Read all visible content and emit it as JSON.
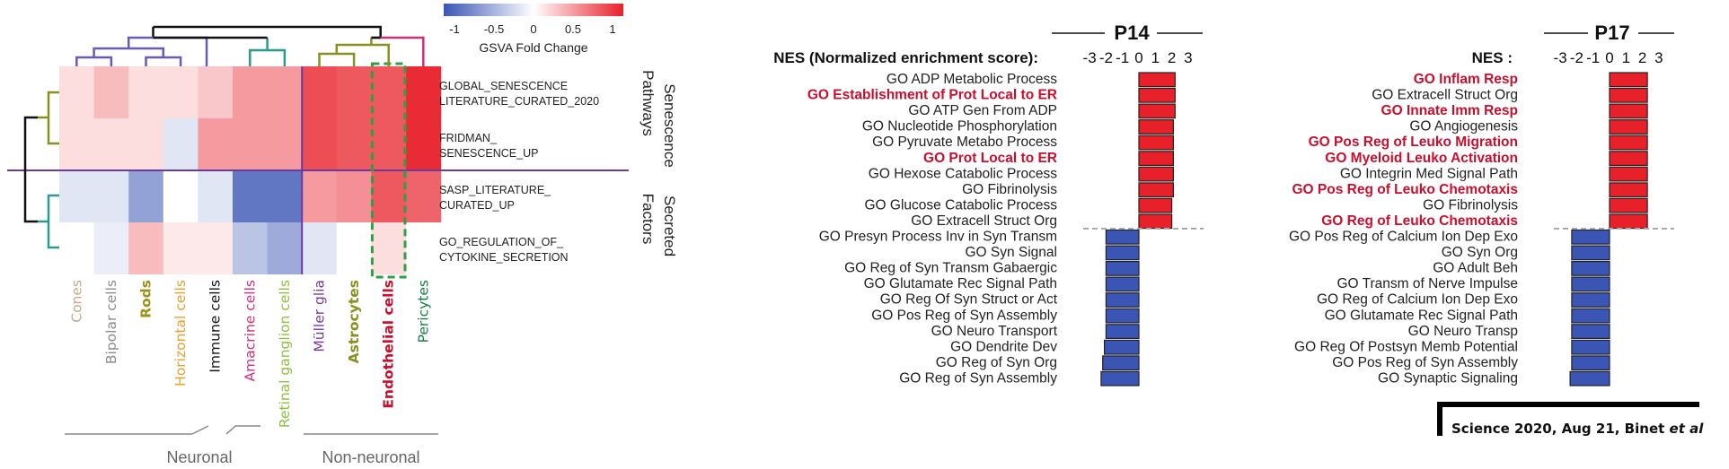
{
  "colorbar": {
    "title": "GSVA Fold Change",
    "ticks": [
      "-1",
      "-0.5",
      "0",
      "0.5",
      "1"
    ],
    "low_color": "#3a55b4",
    "mid_color": "#ffffff",
    "high_color": "#e8202a"
  },
  "heatmap": {
    "columns": [
      {
        "name": "Cones",
        "color": "#c8a98c"
      },
      {
        "name": "Bipolar cells",
        "color": "#8c8c8c"
      },
      {
        "name": "Rods",
        "color": "#a09018",
        "bold": true
      },
      {
        "name": "Horizontal cells",
        "color": "#e8a030"
      },
      {
        "name": "Immune cells",
        "color": "#111111"
      },
      {
        "name": "Amacrine cells",
        "color": "#d0307a"
      },
      {
        "name": "Retinal ganglion cells",
        "color": "#90c040"
      },
      {
        "name": "Müller glia",
        "color": "#7a3a9a"
      },
      {
        "name": "Astrocytes",
        "color": "#8a9020",
        "bold": true
      },
      {
        "name": "Endothelial cells",
        "color": "#c8102e",
        "bold": true
      },
      {
        "name": "Pericytes",
        "color": "#1a7a4a"
      }
    ],
    "rows": [
      {
        "label_line1": "GLOBAL_SENESCENCE",
        "label_line2": "LITERATURE_CURATED_2020"
      },
      {
        "label_line1": "FRIDMAN_",
        "label_line2": "SENESCENCE_UP"
      },
      {
        "label_line1": "SASP_LITERATURE_",
        "label_line2": "CURATED_UP"
      },
      {
        "label_line1": "GO_REGULATION_OF_",
        "label_line2": "CYTOKINE_SECRETION"
      }
    ],
    "values": [
      [
        0.15,
        0.3,
        0.15,
        0.15,
        0.25,
        0.45,
        0.45,
        0.8,
        0.75,
        0.75,
        0.95
      ],
      [
        0.15,
        0.15,
        0.15,
        -0.15,
        0.45,
        0.45,
        0.45,
        0.8,
        0.75,
        0.75,
        0.95
      ],
      [
        -0.15,
        -0.15,
        -0.55,
        0.0,
        -0.15,
        -0.8,
        -0.8,
        0.45,
        0.5,
        0.75,
        0.7
      ],
      [
        0.0,
        -0.1,
        0.3,
        0.1,
        0.1,
        -0.35,
        -0.5,
        -0.15,
        0.0,
        0.15,
        0.0
      ]
    ],
    "row_groups": [
      "Senescence Pathways",
      "Secreted Factors"
    ],
    "column_groups": [
      "Neuronal",
      "Non-neuronal"
    ],
    "highlight_column": "Endothelial cells"
  },
  "chart_data": [
    {
      "type": "heatmap",
      "title": "",
      "x": [
        "Cones",
        "Bipolar cells",
        "Rods",
        "Horizontal cells",
        "Immune cells",
        "Amacrine cells",
        "Retinal ganglion cells",
        "Müller glia",
        "Astrocytes",
        "Endothelial cells",
        "Pericytes"
      ],
      "y": [
        "GLOBAL_SENESCENCE_LITERATURE_CURATED_2020",
        "FRIDMAN_SENESCENCE_UP",
        "SASP_LITERATURE_CURATED_UP",
        "GO_REGULATION_OF_CYTOKINE_SECRETION"
      ],
      "zlim": [
        -1,
        1
      ],
      "colorbar_label": "GSVA Fold Change"
    },
    {
      "type": "bar",
      "orientation": "horizontal",
      "title": "P14",
      "xlabel": "NES (Normalized enrichment score):",
      "xticks": [
        "-3",
        "-2",
        "-1",
        "0",
        "1",
        "2",
        "3"
      ],
      "xlim": [
        -3,
        3
      ],
      "categories": [
        "GO ADP Metabolic Process",
        "GO Establishment of Prot Local to ER",
        "GO ATP Gen From ADP",
        "GO Nucleotide Phosphorylation",
        "GO Pyruvate Metabo Process",
        "GO Prot Local to ER",
        "GO Hexose Catabolic Process",
        "GO Fibrinolysis",
        "GO Glucose Catabolic Process",
        "GO Extracell Struct Org",
        "GO Presyn Process Inv in Syn Transm",
        "GO Syn Signal",
        "GO Reg of Syn Transm Gabaergic",
        "GO Glutamate Rec Signal Path",
        "GO Reg Of Syn Struct or Act",
        "GO Pos Reg of Syn Assembly",
        "GO Neuro Transport",
        "GO Dendrite Dev",
        "GO Reg of Syn Org",
        "GO Reg of Syn Assembly"
      ],
      "highlighted": [
        "GO Establishment of Prot Local to ER",
        "GO Prot Local to ER"
      ],
      "values": [
        2.2,
        2.2,
        2.2,
        2.1,
        2.1,
        2.1,
        2.1,
        2.1,
        2.0,
        2.0,
        -2.0,
        -2.0,
        -2.0,
        -2.0,
        -2.0,
        -2.0,
        -2.0,
        -2.1,
        -2.2,
        -2.3
      ]
    },
    {
      "type": "bar",
      "orientation": "horizontal",
      "title": "P17",
      "xlabel": "NES :",
      "xticks": [
        "-3",
        "-2",
        "-1",
        "0",
        "1",
        "2",
        "3"
      ],
      "xlim": [
        -3,
        3
      ],
      "categories": [
        "GO Inflam Resp",
        "GO Extracell Struct Org",
        "GO Innate Imm Resp",
        "GO Angiogenesis",
        "GO Pos Reg of Leuko Migration",
        "GO Myeloid Leuko Activation",
        "GO Integrin Med Signal Path",
        "GO Pos Reg of Leuko Chemotaxis",
        "GO Fibrinolysis",
        "GO Reg of Leuko Chemotaxis",
        "GO Pos Reg of Calcium Ion Dep Exo",
        "GO Syn Org",
        "GO Adult Beh",
        "GO Transm of Nerve Impulse",
        "GO Reg of Calcium Ion Dep Exo",
        "GO Glutamate Rec Signal Path",
        "GO Neuro Transp",
        "GO Reg Of Postsyn Memb Potential",
        "GO Pos Reg of Syn Assembly",
        "GO Synaptic Signaling"
      ],
      "highlighted": [
        "GO Inflam Resp",
        "GO Innate Imm Resp",
        "GO Pos Reg of Leuko Migration",
        "GO Myeloid Leuko Activation",
        "GO Pos Reg of Leuko Chemotaxis",
        "GO Reg of Leuko Chemotaxis"
      ],
      "values": [
        2.3,
        2.3,
        2.3,
        2.3,
        2.3,
        2.3,
        2.3,
        2.3,
        2.3,
        2.3,
        -2.3,
        -2.3,
        -2.3,
        -2.3,
        -2.3,
        -2.3,
        -2.3,
        -2.3,
        -2.3,
        -2.4
      ]
    }
  ],
  "citation": {
    "text": "Science 2020, Aug 21, Binet ",
    "italic": "et al"
  },
  "colors": {
    "up": "#e8202a",
    "down": "#3a55b4",
    "highlight_text": "#c8102e",
    "separator": "#6a3aa0",
    "highlight_box": "#2ea043"
  }
}
